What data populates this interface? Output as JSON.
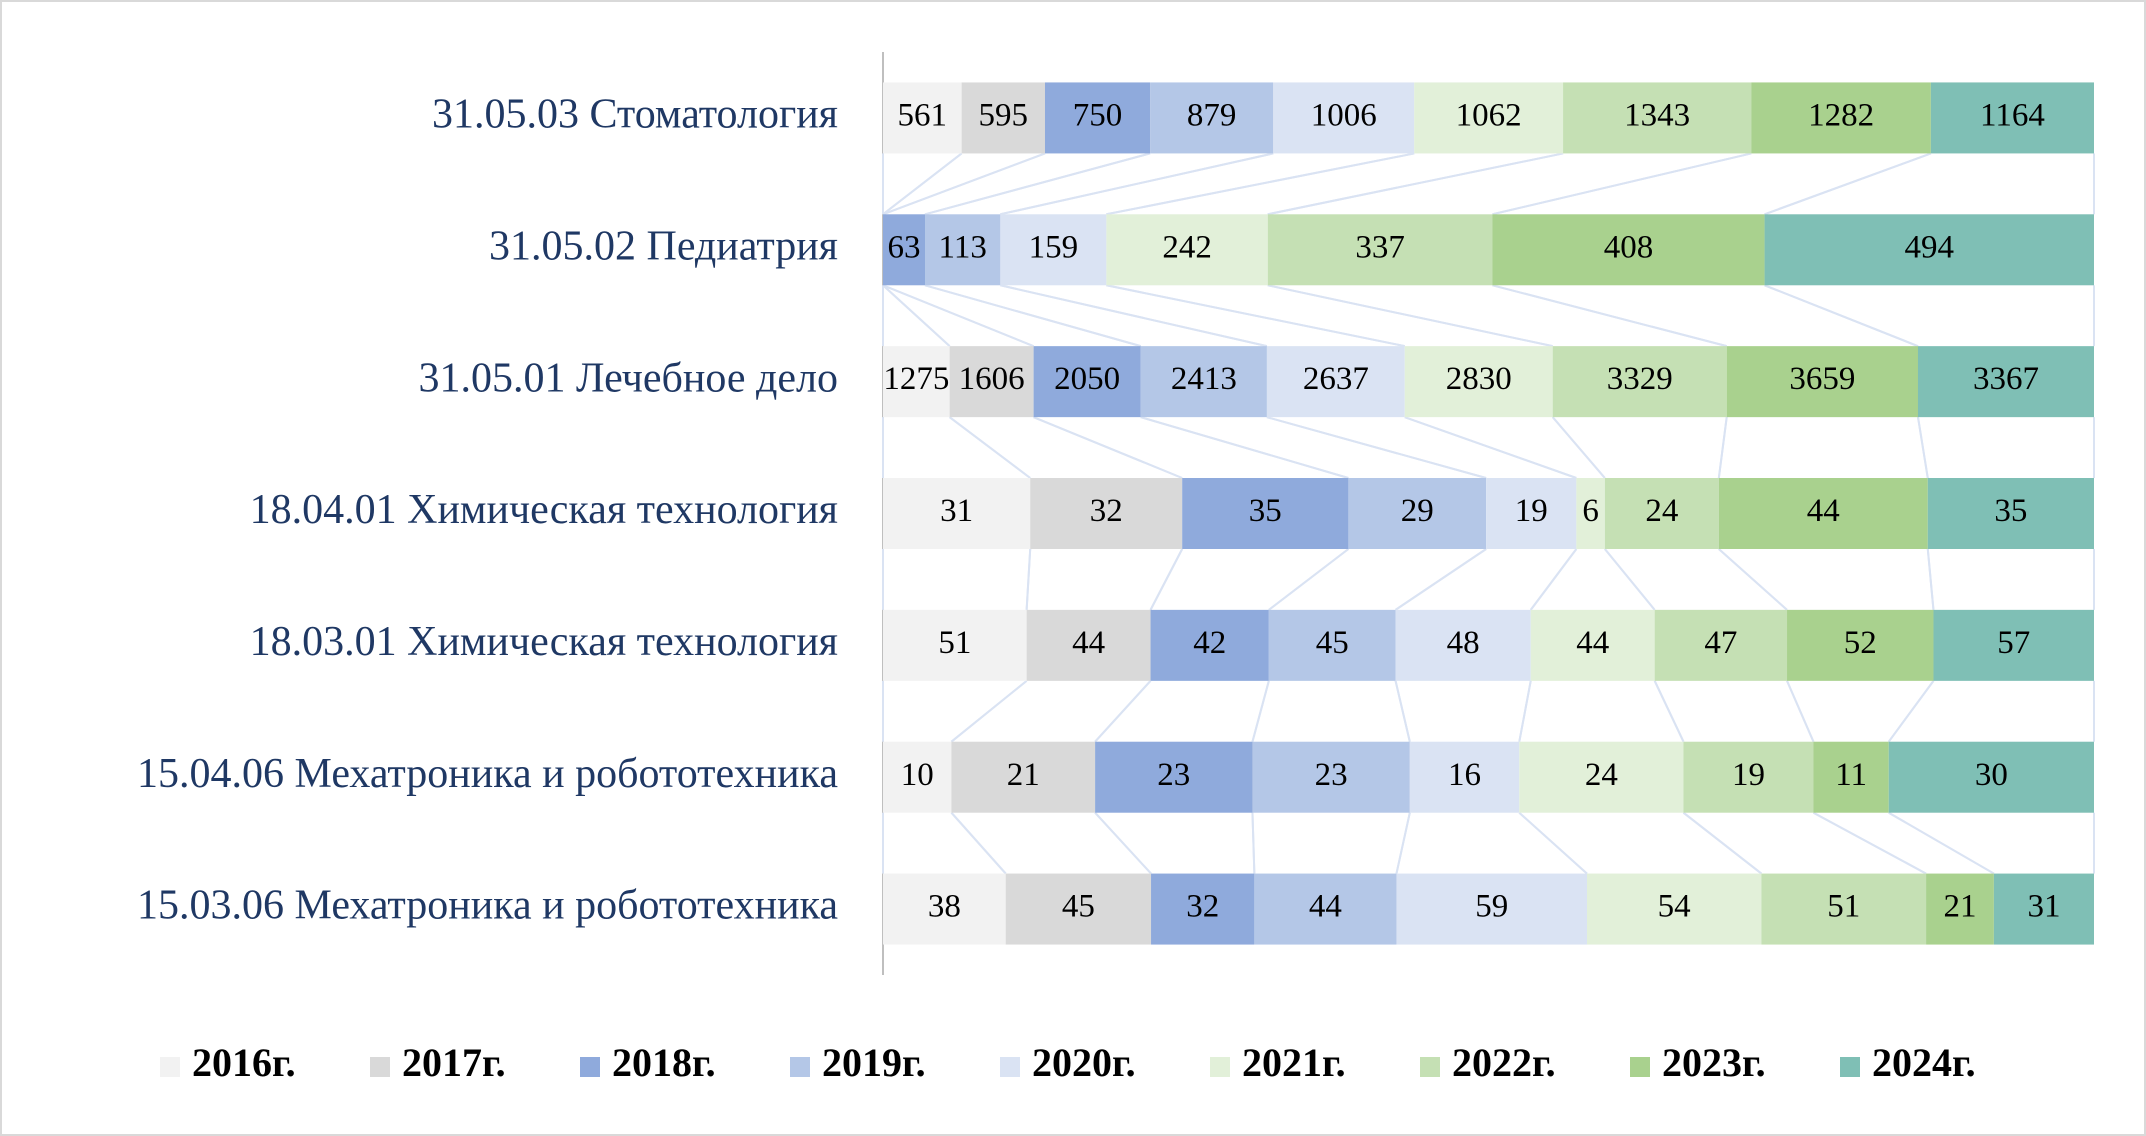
{
  "chart_data": {
    "type": "stacked-bar-100",
    "categories": [
      "31.05.03 Стоматология",
      "31.05.02 Педиатрия",
      "31.05.01 Лечебное дело",
      "18.04.01 Химическая технология",
      "18.03.01 Химическая технология",
      "15.04.06 Мехатроника и робототехника",
      "15.03.06 Мехатроника и робототехника"
    ],
    "series": [
      {
        "name": "2016г.",
        "color": "#f2f2f2",
        "values": [
          561,
          null,
          1275,
          31,
          51,
          10,
          38
        ]
      },
      {
        "name": "2017г.",
        "color": "#d9d9d9",
        "values": [
          595,
          null,
          1606,
          32,
          44,
          21,
          45
        ]
      },
      {
        "name": "2018г.",
        "color": "#8faadc",
        "values": [
          750,
          63,
          2050,
          35,
          42,
          23,
          32
        ]
      },
      {
        "name": "2019г.",
        "color": "#b4c7e7",
        "values": [
          879,
          113,
          2413,
          29,
          45,
          23,
          44
        ]
      },
      {
        "name": "2020г.",
        "color": "#dae3f3",
        "values": [
          1006,
          159,
          2637,
          19,
          48,
          16,
          59
        ]
      },
      {
        "name": "2021г.",
        "color": "#e2f0d9",
        "values": [
          1062,
          242,
          2830,
          6,
          44,
          24,
          54
        ]
      },
      {
        "name": "2022г.",
        "color": "#c5e0b4",
        "values": [
          1343,
          337,
          3329,
          24,
          47,
          19,
          51
        ]
      },
      {
        "name": "2023г.",
        "color": "#a9d18e",
        "values": [
          1282,
          408,
          3659,
          44,
          52,
          11,
          21
        ]
      },
      {
        "name": "2024г.",
        "color": "#7fbfb5",
        "values": [
          1164,
          494,
          3367,
          35,
          57,
          30,
          31
        ]
      }
    ],
    "series_lines": true,
    "legend": "bottom"
  }
}
